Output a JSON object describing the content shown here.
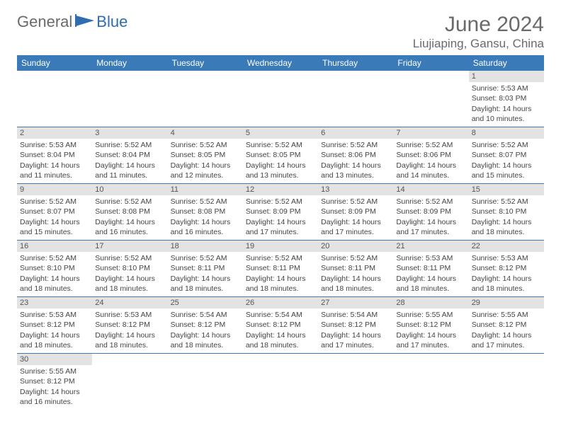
{
  "brand": {
    "gray": "General",
    "blue": "Blue"
  },
  "title": "June 2024",
  "location": "Liujiaping, Gansu, China",
  "colors": {
    "header_bg": "#3a7ab8",
    "header_text": "#ffffff",
    "daynum_bg": "#e3e3e3",
    "cell_border": "#3a7ab8",
    "brand_gray": "#6a6a6a",
    "brand_blue": "#2f6db0",
    "body_text": "#444444"
  },
  "weekdays": [
    "Sunday",
    "Monday",
    "Tuesday",
    "Wednesday",
    "Thursday",
    "Friday",
    "Saturday"
  ],
  "weeks": [
    [
      null,
      null,
      null,
      null,
      null,
      null,
      {
        "n": "1",
        "sr": "Sunrise: 5:53 AM",
        "ss": "Sunset: 8:03 PM",
        "dl": "Daylight: 14 hours and 10 minutes."
      }
    ],
    [
      {
        "n": "2",
        "sr": "Sunrise: 5:53 AM",
        "ss": "Sunset: 8:04 PM",
        "dl": "Daylight: 14 hours and 11 minutes."
      },
      {
        "n": "3",
        "sr": "Sunrise: 5:52 AM",
        "ss": "Sunset: 8:04 PM",
        "dl": "Daylight: 14 hours and 11 minutes."
      },
      {
        "n": "4",
        "sr": "Sunrise: 5:52 AM",
        "ss": "Sunset: 8:05 PM",
        "dl": "Daylight: 14 hours and 12 minutes."
      },
      {
        "n": "5",
        "sr": "Sunrise: 5:52 AM",
        "ss": "Sunset: 8:05 PM",
        "dl": "Daylight: 14 hours and 13 minutes."
      },
      {
        "n": "6",
        "sr": "Sunrise: 5:52 AM",
        "ss": "Sunset: 8:06 PM",
        "dl": "Daylight: 14 hours and 13 minutes."
      },
      {
        "n": "7",
        "sr": "Sunrise: 5:52 AM",
        "ss": "Sunset: 8:06 PM",
        "dl": "Daylight: 14 hours and 14 minutes."
      },
      {
        "n": "8",
        "sr": "Sunrise: 5:52 AM",
        "ss": "Sunset: 8:07 PM",
        "dl": "Daylight: 14 hours and 15 minutes."
      }
    ],
    [
      {
        "n": "9",
        "sr": "Sunrise: 5:52 AM",
        "ss": "Sunset: 8:07 PM",
        "dl": "Daylight: 14 hours and 15 minutes."
      },
      {
        "n": "10",
        "sr": "Sunrise: 5:52 AM",
        "ss": "Sunset: 8:08 PM",
        "dl": "Daylight: 14 hours and 16 minutes."
      },
      {
        "n": "11",
        "sr": "Sunrise: 5:52 AM",
        "ss": "Sunset: 8:08 PM",
        "dl": "Daylight: 14 hours and 16 minutes."
      },
      {
        "n": "12",
        "sr": "Sunrise: 5:52 AM",
        "ss": "Sunset: 8:09 PM",
        "dl": "Daylight: 14 hours and 17 minutes."
      },
      {
        "n": "13",
        "sr": "Sunrise: 5:52 AM",
        "ss": "Sunset: 8:09 PM",
        "dl": "Daylight: 14 hours and 17 minutes."
      },
      {
        "n": "14",
        "sr": "Sunrise: 5:52 AM",
        "ss": "Sunset: 8:09 PM",
        "dl": "Daylight: 14 hours and 17 minutes."
      },
      {
        "n": "15",
        "sr": "Sunrise: 5:52 AM",
        "ss": "Sunset: 8:10 PM",
        "dl": "Daylight: 14 hours and 18 minutes."
      }
    ],
    [
      {
        "n": "16",
        "sr": "Sunrise: 5:52 AM",
        "ss": "Sunset: 8:10 PM",
        "dl": "Daylight: 14 hours and 18 minutes."
      },
      {
        "n": "17",
        "sr": "Sunrise: 5:52 AM",
        "ss": "Sunset: 8:10 PM",
        "dl": "Daylight: 14 hours and 18 minutes."
      },
      {
        "n": "18",
        "sr": "Sunrise: 5:52 AM",
        "ss": "Sunset: 8:11 PM",
        "dl": "Daylight: 14 hours and 18 minutes."
      },
      {
        "n": "19",
        "sr": "Sunrise: 5:52 AM",
        "ss": "Sunset: 8:11 PM",
        "dl": "Daylight: 14 hours and 18 minutes."
      },
      {
        "n": "20",
        "sr": "Sunrise: 5:52 AM",
        "ss": "Sunset: 8:11 PM",
        "dl": "Daylight: 14 hours and 18 minutes."
      },
      {
        "n": "21",
        "sr": "Sunrise: 5:53 AM",
        "ss": "Sunset: 8:11 PM",
        "dl": "Daylight: 14 hours and 18 minutes."
      },
      {
        "n": "22",
        "sr": "Sunrise: 5:53 AM",
        "ss": "Sunset: 8:12 PM",
        "dl": "Daylight: 14 hours and 18 minutes."
      }
    ],
    [
      {
        "n": "23",
        "sr": "Sunrise: 5:53 AM",
        "ss": "Sunset: 8:12 PM",
        "dl": "Daylight: 14 hours and 18 minutes."
      },
      {
        "n": "24",
        "sr": "Sunrise: 5:53 AM",
        "ss": "Sunset: 8:12 PM",
        "dl": "Daylight: 14 hours and 18 minutes."
      },
      {
        "n": "25",
        "sr": "Sunrise: 5:54 AM",
        "ss": "Sunset: 8:12 PM",
        "dl": "Daylight: 14 hours and 18 minutes."
      },
      {
        "n": "26",
        "sr": "Sunrise: 5:54 AM",
        "ss": "Sunset: 8:12 PM",
        "dl": "Daylight: 14 hours and 18 minutes."
      },
      {
        "n": "27",
        "sr": "Sunrise: 5:54 AM",
        "ss": "Sunset: 8:12 PM",
        "dl": "Daylight: 14 hours and 17 minutes."
      },
      {
        "n": "28",
        "sr": "Sunrise: 5:55 AM",
        "ss": "Sunset: 8:12 PM",
        "dl": "Daylight: 14 hours and 17 minutes."
      },
      {
        "n": "29",
        "sr": "Sunrise: 5:55 AM",
        "ss": "Sunset: 8:12 PM",
        "dl": "Daylight: 14 hours and 17 minutes."
      }
    ],
    [
      {
        "n": "30",
        "sr": "Sunrise: 5:55 AM",
        "ss": "Sunset: 8:12 PM",
        "dl": "Daylight: 14 hours and 16 minutes."
      },
      null,
      null,
      null,
      null,
      null,
      null
    ]
  ]
}
